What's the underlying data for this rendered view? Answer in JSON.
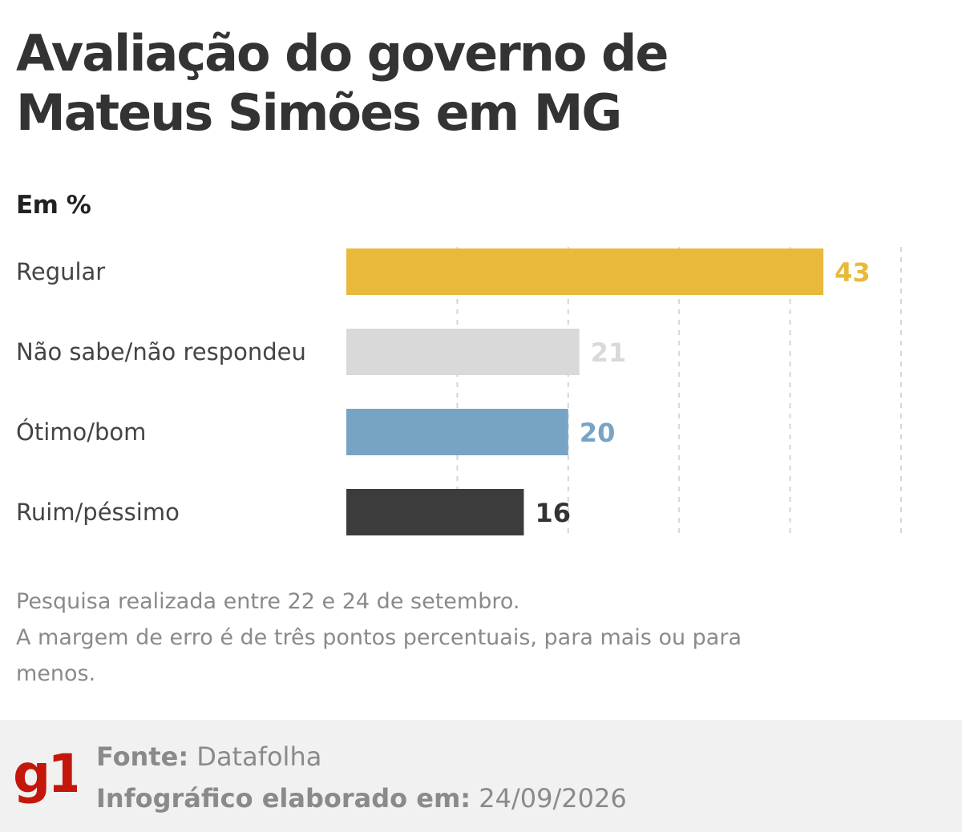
{
  "title_lines": [
    "Avaliação do governo de",
    "Mateus Simões em MG"
  ],
  "unit": "Em %",
  "colors": {
    "text": "#333333",
    "grid": "#d6d6d6",
    "regular": "#E8B93A",
    "nao_sabe": "#D9D9D9",
    "otimo": "#77A4C4",
    "ruim": "#3C3C3C",
    "footer_bg": "#F1F1F1",
    "g1_red": "#C4170C"
  },
  "chart_data": {
    "type": "bar",
    "orientation": "horizontal",
    "categories": [
      "Regular",
      "Não sabe/não respondeu",
      "Ótimo/bom",
      "Ruim/péssimo"
    ],
    "values": [
      43,
      21,
      20,
      16
    ],
    "value_labels": [
      "43",
      "21",
      "20",
      "16"
    ],
    "bar_colors": [
      "#E8B93A",
      "#D9D9D9",
      "#77A4C4",
      "#3C3C3C"
    ],
    "label_colors": [
      "#E8B93A",
      "#D9D9D9",
      "#77A4C4",
      "#333333"
    ],
    "xlim": [
      0,
      50
    ],
    "gridlines": [
      10,
      20,
      30,
      40,
      50
    ],
    "grid": "dashed vertical"
  },
  "notes": [
    "Pesquisa realizada entre 22 e 24 de setembro.",
    "A margem de erro é de três pontos percentuais, para mais ou para menos."
  ],
  "footer": {
    "logo_text": "g1",
    "source_label": "Fonte:",
    "source_value": "Datafolha",
    "date_label": "Infográfico elaborado em:",
    "date_value": "24/09/2026"
  }
}
